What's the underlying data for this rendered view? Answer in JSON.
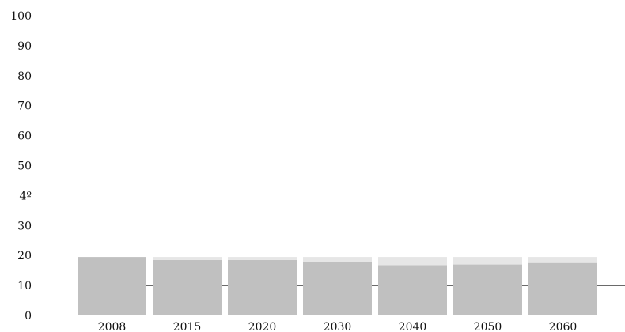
{
  "chart_data": {
    "type": "bar",
    "title": "",
    "xlabel": "",
    "ylabel": "",
    "ylim": [
      0,
      100
    ],
    "y_ticks": [
      "0",
      "10",
      "20",
      "30",
      "4º",
      "50",
      "60",
      "70",
      "80",
      "90",
      "100"
    ],
    "y_tick_values": [
      0,
      10,
      20,
      30,
      40,
      50,
      60,
      70,
      80,
      90,
      100
    ],
    "categories": [
      "2008",
      "2015",
      "2020",
      "2030",
      "2040",
      "2050",
      "2060"
    ],
    "series": [
      {
        "values": [
          19.5,
          18.5,
          18.5,
          18.0,
          16.8,
          17.0,
          17.5
        ]
      },
      {
        "values": [
          0.0,
          1.0,
          1.0,
          1.5,
          2.7,
          2.5,
          2.0
        ]
      }
    ],
    "reference_line": 10,
    "grid": false,
    "colors": {
      "base": "#c0c0c0",
      "top": "#e6e6e6",
      "line": "#111111",
      "text": "#111111"
    }
  }
}
